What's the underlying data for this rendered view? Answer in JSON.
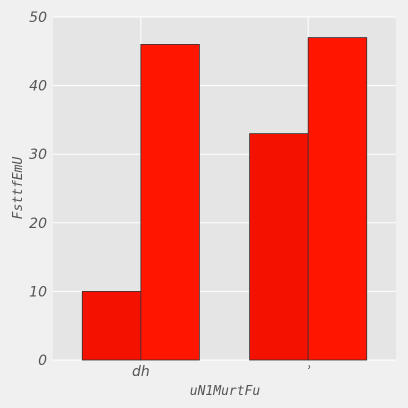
{
  "chart_data": {
    "type": "bar",
    "title": "",
    "xlabel": "uN1MurtFu",
    "ylabel": "FsttfEmU",
    "categories": [
      "dh",
      "ʾ"
    ],
    "series": [
      {
        "name": "",
        "values": [
          10,
          33
        ],
        "color": "#f51100"
      },
      {
        "name": "",
        "values": [
          46,
          47
        ],
        "color": "#ff1500"
      }
    ],
    "ylim": [
      0,
      50
    ],
    "yticks": [
      0,
      10,
      20,
      30,
      40,
      50
    ],
    "grid": true,
    "legend": "none"
  },
  "colors": {
    "plot_background": "#e5e5e5",
    "page_background": "#f0f0f0",
    "grid": "#ffffff",
    "text": "#555555",
    "bar_edge": "#333333"
  }
}
